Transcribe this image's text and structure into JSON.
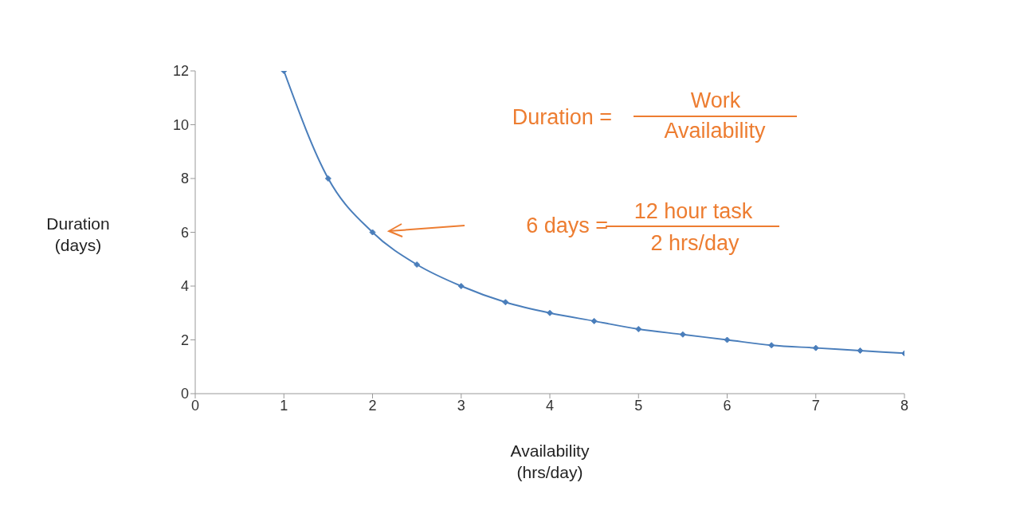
{
  "chart_data": {
    "type": "line",
    "xlabel": "Availability\n(hrs/day)",
    "ylabel": "Duration\n(days)",
    "x": [
      1,
      1.5,
      2,
      2.5,
      3,
      3.5,
      4,
      4.5,
      5,
      5.5,
      6,
      6.5,
      7,
      7.5,
      8
    ],
    "series": [
      {
        "color": "#4a7ebb",
        "values": [
          12,
          8,
          6,
          4.8,
          4,
          3.4,
          3,
          2.7,
          2.4,
          2.2,
          2,
          1.8,
          1.7,
          1.6,
          1.5
        ]
      }
    ],
    "xlim": [
      0,
      8
    ],
    "xticks": [
      0,
      1,
      2,
      3,
      4,
      5,
      6,
      7,
      8
    ],
    "ylim": [
      0,
      12
    ],
    "yticks": [
      0,
      2,
      4,
      6,
      8,
      10,
      12
    ],
    "grid": false,
    "legend": false,
    "marker": "diamond",
    "line_style": "solid",
    "annotations": [
      "Duration =",
      "Work",
      "Availability",
      "6 days =",
      "12 hour task",
      "2 hrs/day"
    ]
  }
}
